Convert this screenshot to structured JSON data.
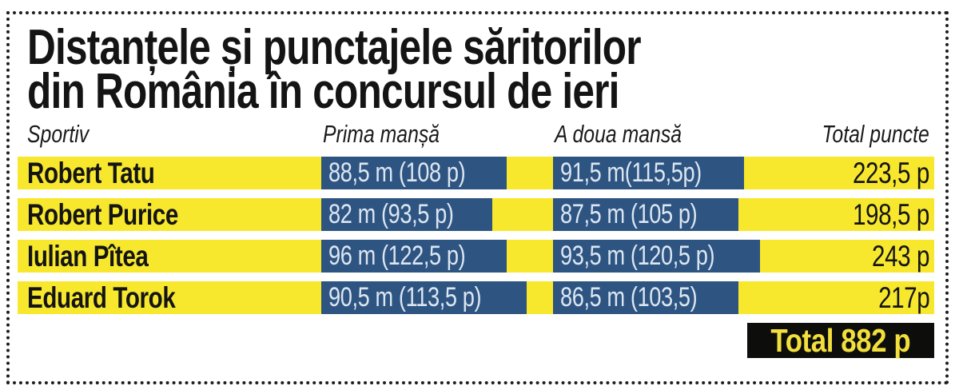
{
  "title": {
    "line1": "Distanțele și punctajele săritorilor",
    "line2": "din România în concursul de ieri"
  },
  "table": {
    "headers": {
      "athlete": "Sportiv",
      "round1": "Prima manșă",
      "round2": "A doua mansă",
      "total": "Total puncte"
    },
    "rows": [
      {
        "athlete": "Robert Tatu",
        "round1": "88,5 m (108 p)",
        "round2": "91,5 m(115,5p)",
        "total": "223,5 p"
      },
      {
        "athlete": "Robert Purice",
        "round1": "82 m (93,5 p)",
        "round2": "87,5 m (105 p)",
        "total": "198,5 p"
      },
      {
        "athlete": "Iulian Pîtea",
        "round1": "96 m (122,5 p)",
        "round2": "93,5 m (120,5 p)",
        "total": "243 p"
      },
      {
        "athlete": "Eduard Torok",
        "round1": "90,5 m (113,5 p)",
        "round2": "86,5 m (103,5)",
        "total": "217p"
      }
    ],
    "grand_total": "Total 882 p"
  },
  "chart_data": {
    "type": "table",
    "title": "Distanțele și punctajele săritorilor din România în concursul de ieri",
    "columns": [
      "Sportiv",
      "Prima manșă",
      "A doua mansă",
      "Total puncte"
    ],
    "rows": [
      [
        "Robert Tatu",
        "88,5 m (108 p)",
        "91,5 m(115,5p)",
        "223,5 p"
      ],
      [
        "Robert Purice",
        "82 m (93,5 p)",
        "87,5 m (105 p)",
        "198,5 p"
      ],
      [
        "Iulian Pîtea",
        "96 m (122,5 p)",
        "93,5 m (120,5 p)",
        "243 p"
      ],
      [
        "Eduard Torok",
        "90,5 m (113,5 p)",
        "86,5 m (103,5)",
        "217p"
      ]
    ],
    "footer": "Total 882 p",
    "numeric": {
      "athletes": [
        "Robert Tatu",
        "Robert Purice",
        "Iulian Pîtea",
        "Eduard Torok"
      ],
      "round1_distance_m": [
        88.5,
        82,
        96,
        90.5
      ],
      "round1_points": [
        108,
        93.5,
        122.5,
        113.5
      ],
      "round2_distance_m": [
        91.5,
        87.5,
        93.5,
        86.5
      ],
      "round2_points": [
        115.5,
        105,
        120.5,
        103.5
      ],
      "total_points": [
        223.5,
        198.5,
        243,
        217
      ],
      "grand_total_points": 882
    }
  },
  "colors": {
    "yellow": "#f7e82e",
    "blue": "#2e5481",
    "cell_text": "#dce6f2",
    "ink": "#141414",
    "total_bg": "#0d0d0b",
    "total_text": "#f2df3c"
  }
}
